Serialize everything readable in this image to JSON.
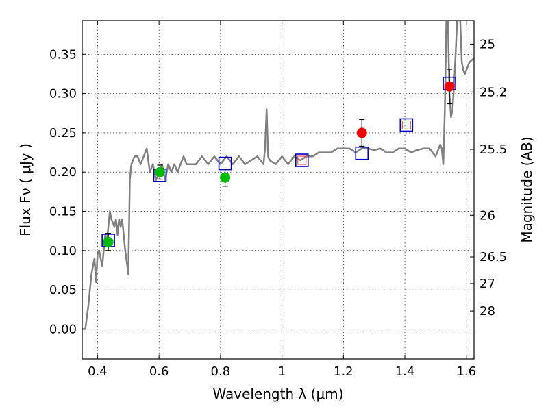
{
  "chart_data": {
    "type": "scatter",
    "title": "",
    "xlabel": "Wavelength  λ (μm)",
    "ylabel": "Flux  Fν  ( μJy )",
    "ylabel_right": "Magnitude (AB)",
    "xlim": [
      0.35,
      1.625
    ],
    "ylim": [
      -0.038,
      0.393
    ],
    "grid": true,
    "x_ticks": [
      0.4,
      0.6,
      0.8,
      1.0,
      1.2,
      1.4,
      1.6
    ],
    "x_tick_labels": [
      "0.4",
      "0.6",
      "0.8",
      "1",
      "1.2",
      "1.4",
      "1.6"
    ],
    "y_ticks": [
      0.0,
      0.05,
      0.1,
      0.15,
      0.2,
      0.25,
      0.3,
      0.35
    ],
    "y_tick_labels": [
      "0.00",
      "0.05",
      "0.10",
      "0.15",
      "0.20",
      "0.25",
      "0.30",
      "0.35"
    ],
    "right_axis": {
      "ticks": [
        {
          "flux": 0.363,
          "label": "25"
        },
        {
          "flux": 0.302,
          "label": "25.2"
        },
        {
          "flux": 0.229,
          "label": "25.5"
        },
        {
          "flux": 0.145,
          "label": "26"
        },
        {
          "flux": 0.092,
          "label": "26.5"
        },
        {
          "flux": 0.058,
          "label": "27"
        },
        {
          "flux": 0.023,
          "label": "28"
        }
      ]
    },
    "series": [
      {
        "kind": "line",
        "color": "#808080",
        "x": [
          0.35,
          0.36,
          0.37,
          0.38,
          0.39,
          0.395,
          0.4,
          0.405,
          0.41,
          0.415,
          0.42,
          0.425,
          0.43,
          0.435,
          0.44,
          0.445,
          0.45,
          0.455,
          0.46,
          0.465,
          0.47,
          0.475,
          0.48,
          0.485,
          0.49,
          0.495,
          0.5,
          0.505,
          0.51,
          0.52,
          0.53,
          0.54,
          0.55,
          0.56,
          0.57,
          0.58,
          0.59,
          0.6,
          0.61,
          0.62,
          0.63,
          0.64,
          0.65,
          0.66,
          0.67,
          0.68,
          0.69,
          0.7,
          0.72,
          0.74,
          0.76,
          0.78,
          0.8,
          0.82,
          0.84,
          0.86,
          0.88,
          0.9,
          0.92,
          0.94,
          0.945,
          0.95,
          0.955,
          0.96,
          0.98,
          1.0,
          1.02,
          1.04,
          1.06,
          1.08,
          1.1,
          1.12,
          1.14,
          1.16,
          1.18,
          1.2,
          1.22,
          1.24,
          1.26,
          1.28,
          1.3,
          1.32,
          1.34,
          1.36,
          1.38,
          1.4,
          1.42,
          1.44,
          1.46,
          1.48,
          1.49,
          1.5,
          1.51,
          1.515,
          1.52,
          1.525,
          1.53,
          1.535,
          1.54,
          1.545,
          1.55,
          1.555,
          1.56,
          1.565,
          1.57,
          1.575,
          1.58,
          1.585,
          1.59,
          1.595,
          1.6,
          1.61,
          1.625
        ],
        "y": [
          0.0,
          0.0,
          0.03,
          0.07,
          0.09,
          0.06,
          0.095,
          0.1,
          0.09,
          0.08,
          0.1,
          0.12,
          0.11,
          0.13,
          0.15,
          0.14,
          0.135,
          0.13,
          0.14,
          0.12,
          0.14,
          0.13,
          0.14,
          0.12,
          0.1,
          0.085,
          0.07,
          0.19,
          0.21,
          0.22,
          0.22,
          0.21,
          0.22,
          0.23,
          0.2,
          0.21,
          0.19,
          0.2,
          0.21,
          0.19,
          0.21,
          0.2,
          0.21,
          0.2,
          0.21,
          0.22,
          0.21,
          0.21,
          0.21,
          0.22,
          0.21,
          0.22,
          0.21,
          0.22,
          0.21,
          0.22,
          0.21,
          0.215,
          0.22,
          0.21,
          0.23,
          0.28,
          0.22,
          0.215,
          0.21,
          0.22,
          0.21,
          0.22,
          0.215,
          0.22,
          0.22,
          0.225,
          0.225,
          0.225,
          0.23,
          0.23,
          0.23,
          0.225,
          0.23,
          0.23,
          0.228,
          0.23,
          0.225,
          0.225,
          0.23,
          0.23,
          0.225,
          0.228,
          0.23,
          0.23,
          0.225,
          0.22,
          0.23,
          0.235,
          0.23,
          0.21,
          0.28,
          0.393,
          0.393,
          0.3,
          0.27,
          0.28,
          0.31,
          0.35,
          0.393,
          0.393,
          0.393,
          0.34,
          0.33,
          0.325,
          0.33,
          0.34,
          0.345
        ]
      },
      {
        "kind": "open-square",
        "color": "#0000cc",
        "x": [
          0.435,
          0.603,
          0.815,
          1.065,
          1.26,
          1.405,
          1.545
        ],
        "y": [
          0.113,
          0.196,
          0.211,
          0.215,
          0.224,
          0.26,
          0.313
        ]
      },
      {
        "kind": "filled-circle",
        "color": "#00bb00",
        "x": [
          0.435,
          0.603,
          0.815
        ],
        "y": [
          0.111,
          0.2,
          0.193
        ],
        "err": [
          0.011,
          0.009,
          0.011
        ]
      },
      {
        "kind": "filled-circle",
        "color": "#ee0000",
        "x": [
          1.26,
          1.545
        ],
        "y": [
          0.25,
          0.309
        ],
        "err": [
          0.017,
          0.022
        ]
      },
      {
        "kind": "small-open-square",
        "color": "#ff3030",
        "x": [
          1.065,
          1.405
        ],
        "y": [
          0.215,
          0.26
        ]
      }
    ]
  }
}
